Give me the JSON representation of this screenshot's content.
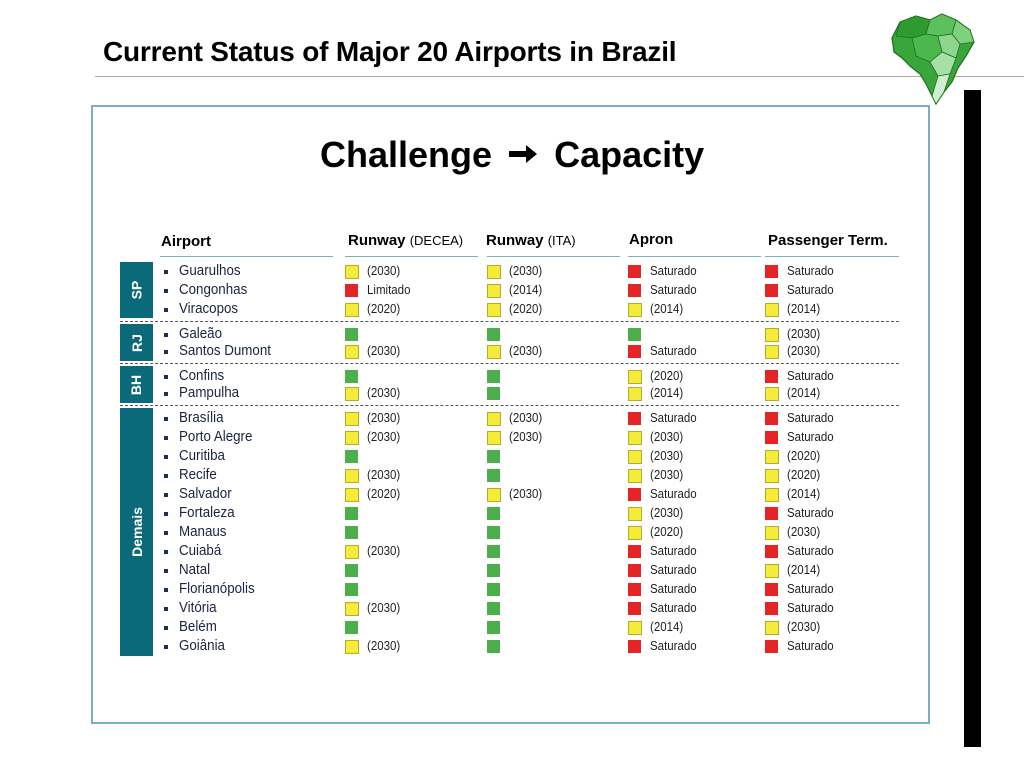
{
  "slide": {
    "title": "Current Status of Major 20 Airports in Brazil",
    "subtitle_left": "Challenge",
    "subtitle_right": "Capacity"
  },
  "headers": {
    "airport": "Airport",
    "runway_decea": "Runway",
    "runway_decea_sub": "(DECEA)",
    "runway_ita": "Runway",
    "runway_ita_sub": "(ITA)",
    "apron": "Apron",
    "passenger": "Passenger Term."
  },
  "colors": {
    "yellow": "#f5ec3a",
    "red": "#e52525",
    "green": "#4caf4c",
    "region": "#0b6a79"
  },
  "regions": [
    "SP",
    "RJ",
    "BH",
    "Demais"
  ],
  "airports": [
    {
      "name": "Guarulhos",
      "cells": [
        [
          "y",
          "(2030)"
        ],
        [
          "y",
          "(2030)"
        ],
        [
          "r",
          "Saturado"
        ],
        [
          "r",
          "Saturado"
        ]
      ]
    },
    {
      "name": "Congonhas",
      "cells": [
        [
          "r",
          "Limitado"
        ],
        [
          "y",
          "(2014)"
        ],
        [
          "r",
          "Saturado"
        ],
        [
          "r",
          "Saturado"
        ]
      ]
    },
    {
      "name": "Viracopos",
      "cells": [
        [
          "y",
          "(2020)"
        ],
        [
          "y",
          "(2020)"
        ],
        [
          "y",
          "(2014)"
        ],
        [
          "y",
          "(2014)"
        ]
      ]
    },
    {
      "name": "Galeão",
      "cells": [
        [
          "g",
          ""
        ],
        [
          "g",
          ""
        ],
        [
          "g",
          ""
        ],
        [
          "y",
          "(2030)"
        ]
      ]
    },
    {
      "name": "Santos Dumont",
      "cells": [
        [
          "y",
          "(2030)"
        ],
        [
          "y",
          "(2030)"
        ],
        [
          "r",
          "Saturado"
        ],
        [
          "y",
          "(2030)"
        ]
      ]
    },
    {
      "name": "Confins",
      "cells": [
        [
          "g",
          ""
        ],
        [
          "g",
          ""
        ],
        [
          "y",
          "(2020)"
        ],
        [
          "r",
          "Saturado"
        ]
      ]
    },
    {
      "name": "Pampulha",
      "cells": [
        [
          "y",
          "(2030)"
        ],
        [
          "g",
          ""
        ],
        [
          "y",
          "(2014)"
        ],
        [
          "y",
          "(2014)"
        ]
      ]
    },
    {
      "name": "Brasília",
      "cells": [
        [
          "y",
          "(2030)"
        ],
        [
          "y",
          "(2030)"
        ],
        [
          "r",
          "Saturado"
        ],
        [
          "r",
          "Saturado"
        ]
      ]
    },
    {
      "name": "Porto Alegre",
      "cells": [
        [
          "y",
          "(2030)"
        ],
        [
          "y",
          "(2030)"
        ],
        [
          "y",
          "(2030)"
        ],
        [
          "r",
          "Saturado"
        ]
      ]
    },
    {
      "name": "Curitiba",
      "cells": [
        [
          "g",
          ""
        ],
        [
          "g",
          ""
        ],
        [
          "y",
          "(2030)"
        ],
        [
          "y",
          "(2020)"
        ]
      ]
    },
    {
      "name": "Recife",
      "cells": [
        [
          "y",
          "(2030)"
        ],
        [
          "g",
          ""
        ],
        [
          "y",
          "(2030)"
        ],
        [
          "y",
          "(2020)"
        ]
      ]
    },
    {
      "name": "Salvador",
      "cells": [
        [
          "y",
          "(2020)"
        ],
        [
          "y",
          "(2030)"
        ],
        [
          "r",
          "Saturado"
        ],
        [
          "y",
          "(2014)"
        ]
      ]
    },
    {
      "name": "Fortaleza",
      "cells": [
        [
          "g",
          ""
        ],
        [
          "g",
          ""
        ],
        [
          "y",
          "(2030)"
        ],
        [
          "r",
          "Saturado"
        ]
      ]
    },
    {
      "name": "Manaus",
      "cells": [
        [
          "g",
          ""
        ],
        [
          "g",
          ""
        ],
        [
          "y",
          "(2020)"
        ],
        [
          "y",
          "(2030)"
        ]
      ]
    },
    {
      "name": "Cuiabá",
      "cells": [
        [
          "y",
          "(2030)"
        ],
        [
          "g",
          ""
        ],
        [
          "r",
          "Saturado"
        ],
        [
          "r",
          "Saturado"
        ]
      ]
    },
    {
      "name": "Natal",
      "cells": [
        [
          "g",
          ""
        ],
        [
          "g",
          ""
        ],
        [
          "r",
          "Saturado"
        ],
        [
          "y",
          "(2014)"
        ]
      ]
    },
    {
      "name": "Florianópolis",
      "cells": [
        [
          "g",
          ""
        ],
        [
          "g",
          ""
        ],
        [
          "r",
          "Saturado"
        ],
        [
          "r",
          "Saturado"
        ]
      ]
    },
    {
      "name": "Vitória",
      "cells": [
        [
          "y",
          "(2030)"
        ],
        [
          "g",
          ""
        ],
        [
          "r",
          "Saturado"
        ],
        [
          "r",
          "Saturado"
        ]
      ]
    },
    {
      "name": "Belém",
      "cells": [
        [
          "g",
          ""
        ],
        [
          "g",
          ""
        ],
        [
          "y",
          "(2014)"
        ],
        [
          "y",
          "(2030)"
        ]
      ]
    },
    {
      "name": "Goiânia",
      "cells": [
        [
          "y",
          "(2030)"
        ],
        [
          "g",
          ""
        ],
        [
          "r",
          "Saturado"
        ],
        [
          "r",
          "Saturado"
        ]
      ]
    }
  ]
}
